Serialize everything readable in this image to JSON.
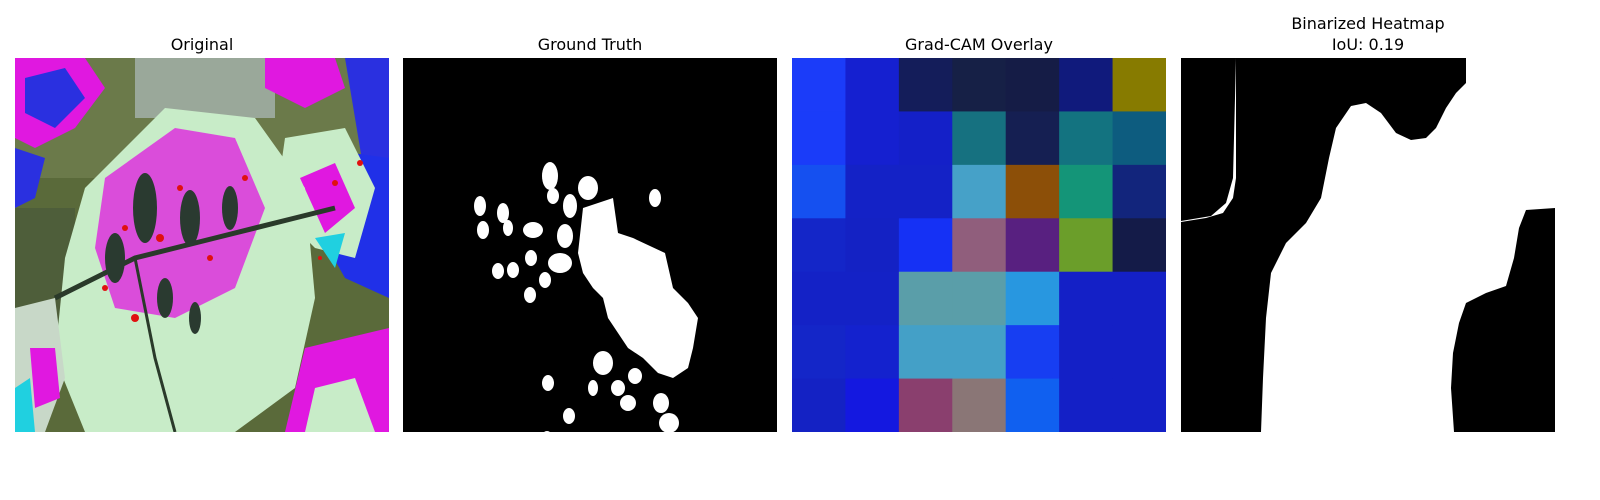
{
  "panels": [
    {
      "title": "Original"
    },
    {
      "title": "Ground Truth"
    },
    {
      "title": "Grad-CAM Overlay"
    },
    {
      "title": "Binarized Heatmap",
      "subtitle": "IoU: 0.19"
    }
  ],
  "gradcam": {
    "rows": 7,
    "cols": 7,
    "colors": [
      [
        "#1b3cf9",
        "#1520d0",
        "#141d5a",
        "#162046",
        "#151c46",
        "#101a7c",
        "#877b00"
      ],
      [
        "#1a3cf9",
        "#1520d0",
        "#1420c8",
        "#167180",
        "#151f52",
        "#137380",
        "#0d5c7f"
      ],
      [
        "#1550f0",
        "#1422c6",
        "#1422c6",
        "#46a1c8",
        "#8c4f08",
        "#149578",
        "#12257c"
      ],
      [
        "#1426c8",
        "#1422c4",
        "#1531f5",
        "#905e7c",
        "#582080",
        "#6b9e2a",
        "#141b48"
      ],
      [
        "#1422c6",
        "#1422c6",
        "#5a9ea9",
        "#5a9ea9",
        "#2897e0",
        "#1420c6",
        "#1420c6"
      ],
      [
        "#1426c8",
        "#1422ce",
        "#44a0c7",
        "#44a0c7",
        "#173ef2",
        "#1420c6",
        "#1420c6"
      ],
      [
        "#1422c4",
        "#1418e0",
        "#8a3f6e",
        "#8a7676",
        "#1060f0",
        "#1420c6",
        "#1420c6"
      ]
    ]
  },
  "ground_truth": {
    "background": "#000000",
    "foreground": "#ffffff"
  },
  "binarized": {
    "background": "#000000",
    "foreground": "#ffffff"
  }
}
